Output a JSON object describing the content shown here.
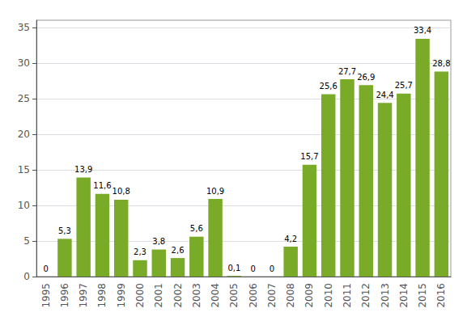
{
  "chart_data": {
    "type": "bar",
    "categories": [
      "1995",
      "1996",
      "1997",
      "1998",
      "1999",
      "2000",
      "2001",
      "2002",
      "2003",
      "2004",
      "2005",
      "2006",
      "2007",
      "2008",
      "2009",
      "2010",
      "2011",
      "2012",
      "2013",
      "2014",
      "2015",
      "2016"
    ],
    "values": [
      0,
      5.3,
      13.9,
      11.6,
      10.8,
      2.3,
      3.8,
      2.6,
      5.6,
      10.9,
      0.1,
      0,
      0,
      4.2,
      15.7,
      25.6,
      27.7,
      26.9,
      24.4,
      25.7,
      33.4,
      28.8
    ],
    "value_labels": [
      "0",
      "5,3",
      "13,9",
      "11,6",
      "10,8",
      "2,3",
      "3,8",
      "2,6",
      "5,6",
      "10,9",
      "0,1",
      "0",
      "0",
      "4,2",
      "15,7",
      "25,6",
      "27,7",
      "26,9",
      "24,4",
      "25,7",
      "33,4",
      "28,8"
    ],
    "color": "#7aab28",
    "ylim": [
      0,
      36
    ],
    "yticks": [
      0,
      5,
      10,
      15,
      20,
      25,
      30,
      35
    ],
    "grid": true,
    "data_labels": true
  }
}
